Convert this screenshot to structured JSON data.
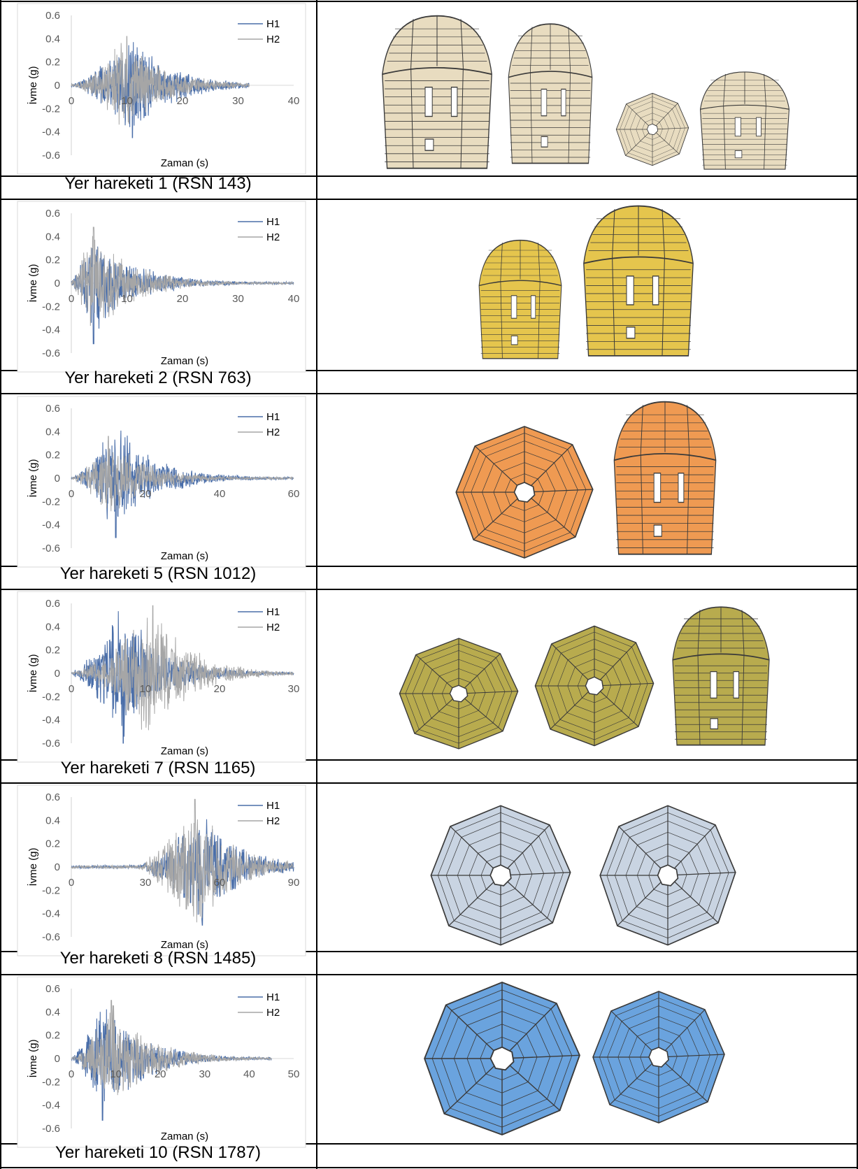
{
  "colors": {
    "h1": "#4a6ea9",
    "h2": "#a6a6a6",
    "axis": "#d9d9d9",
    "chart_border": "#d9d9d9",
    "tan": "#e8dcc0",
    "yellow": "#e5c54d",
    "orange": "#ef9a52",
    "olive": "#b8ab4e",
    "silver": "#c9d4e2",
    "blue": "#6aa3de",
    "mortar": "#3a3a3a"
  },
  "rows": [
    {
      "caption": "Yer hareketi 1 (RSN 143)",
      "model_color": "tan",
      "chart_data": {
        "type": "line",
        "ylabel": "İvme (g)",
        "xlabel": "Zaman (s)",
        "xlim": [
          0,
          40
        ],
        "xticks": [
          0,
          10,
          20,
          30,
          40
        ],
        "ylim": [
          -0.6,
          0.6
        ],
        "yticks": [
          "0.6",
          "0.4",
          "0.2",
          "0",
          "-0.2",
          "-0.4",
          "-0.6"
        ],
        "legend_position": "top-right",
        "series": [
          {
            "name": "H1",
            "duration": 32,
            "peak": 0.45,
            "peak_t": 11
          },
          {
            "name": "H2",
            "duration": 32,
            "peak": 0.42,
            "peak_t": 10
          }
        ]
      }
    },
    {
      "caption": "Yer hareketi 2  (RSN 763)",
      "model_color": "yellow",
      "chart_data": {
        "type": "line",
        "ylabel": "İvme (g)",
        "xlabel": "Zaman (s)",
        "xlim": [
          0,
          40
        ],
        "xticks": [
          0,
          10,
          20,
          30,
          40
        ],
        "ylim": [
          -0.6,
          0.6
        ],
        "yticks": [
          "0.6",
          "0.4",
          "0.2",
          "0",
          "-0.2",
          "-0.4",
          "-0.6"
        ],
        "legend_position": "top-right",
        "series": [
          {
            "name": "H1",
            "duration": 40,
            "peak": 0.52,
            "peak_t": 4
          },
          {
            "name": "H2",
            "duration": 40,
            "peak": 0.48,
            "peak_t": 4
          }
        ]
      }
    },
    {
      "caption": "Yer hareketi 5 (RSN 1012)",
      "model_color": "orange",
      "chart_data": {
        "type": "line",
        "ylabel": "İvme (g)",
        "xlabel": "Zaman (s)",
        "xlim": [
          0,
          60
        ],
        "xticks": [
          0,
          20,
          40,
          60
        ],
        "ylim": [
          -0.6,
          0.6
        ],
        "yticks": [
          "0.6",
          "0.4",
          "0.2",
          "0",
          "-0.2",
          "-0.4",
          "-0.6"
        ],
        "legend_position": "top-right",
        "series": [
          {
            "name": "H1",
            "duration": 60,
            "peak": 0.51,
            "peak_t": 12
          },
          {
            "name": "H2",
            "duration": 60,
            "peak": 0.36,
            "peak_t": 10
          }
        ]
      }
    },
    {
      "caption": "Yer hareketi 7 (RSN 1165)",
      "model_color": "olive",
      "chart_data": {
        "type": "line",
        "ylabel": "İvme (g)",
        "xlabel": "Zaman (s)",
        "xlim": [
          0,
          30
        ],
        "xticks": [
          0,
          10,
          20,
          30
        ],
        "ylim": [
          -0.6,
          0.6
        ],
        "yticks": [
          "0.6",
          "0.4",
          "0.2",
          "0",
          "-0.2",
          "-0.4",
          "-0.6"
        ],
        "legend_position": "top-right",
        "series": [
          {
            "name": "H1",
            "duration": 30,
            "peak": 0.6,
            "peak_t": 7
          },
          {
            "name": "H2",
            "duration": 30,
            "peak": 0.58,
            "peak_t": 11
          }
        ]
      }
    },
    {
      "caption": "Yer hareketi 8 (RSN 1485)",
      "model_color": "silver",
      "chart_data": {
        "type": "line",
        "ylabel": "İvme (g)",
        "xlabel": "Zaman (s)",
        "xlim": [
          0,
          90
        ],
        "xticks": [
          0,
          30,
          60,
          90
        ],
        "ylim": [
          -0.6,
          0.6
        ],
        "yticks": [
          "0.6",
          "0.4",
          "0.2",
          "0",
          "-0.2",
          "-0.4",
          "-0.6"
        ],
        "legend_position": "top-right",
        "series": [
          {
            "name": "H1",
            "duration": 90,
            "peak": 0.5,
            "peak_t": 53,
            "quiet_until": 25
          },
          {
            "name": "H2",
            "duration": 90,
            "peak": 0.58,
            "peak_t": 50,
            "quiet_until": 25
          }
        ]
      }
    },
    {
      "caption": "Yer hareketi 10 (RSN 1787)",
      "model_color": "blue",
      "chart_data": {
        "type": "line",
        "ylabel": "İvme (g)",
        "xlabel": "Zaman (s)",
        "xlim": [
          0,
          50
        ],
        "xticks": [
          0,
          10,
          20,
          30,
          40,
          50
        ],
        "ylim": [
          -0.6,
          0.6
        ],
        "yticks": [
          "0.6",
          "0.4",
          "0.2",
          "0",
          "-0.2",
          "-0.4",
          "-0.6"
        ],
        "legend_position": "top-right",
        "series": [
          {
            "name": "H1",
            "duration": 45,
            "peak": 0.53,
            "peak_t": 7
          },
          {
            "name": "H2",
            "duration": 45,
            "peak": 0.5,
            "peak_t": 9
          }
        ]
      }
    }
  ]
}
